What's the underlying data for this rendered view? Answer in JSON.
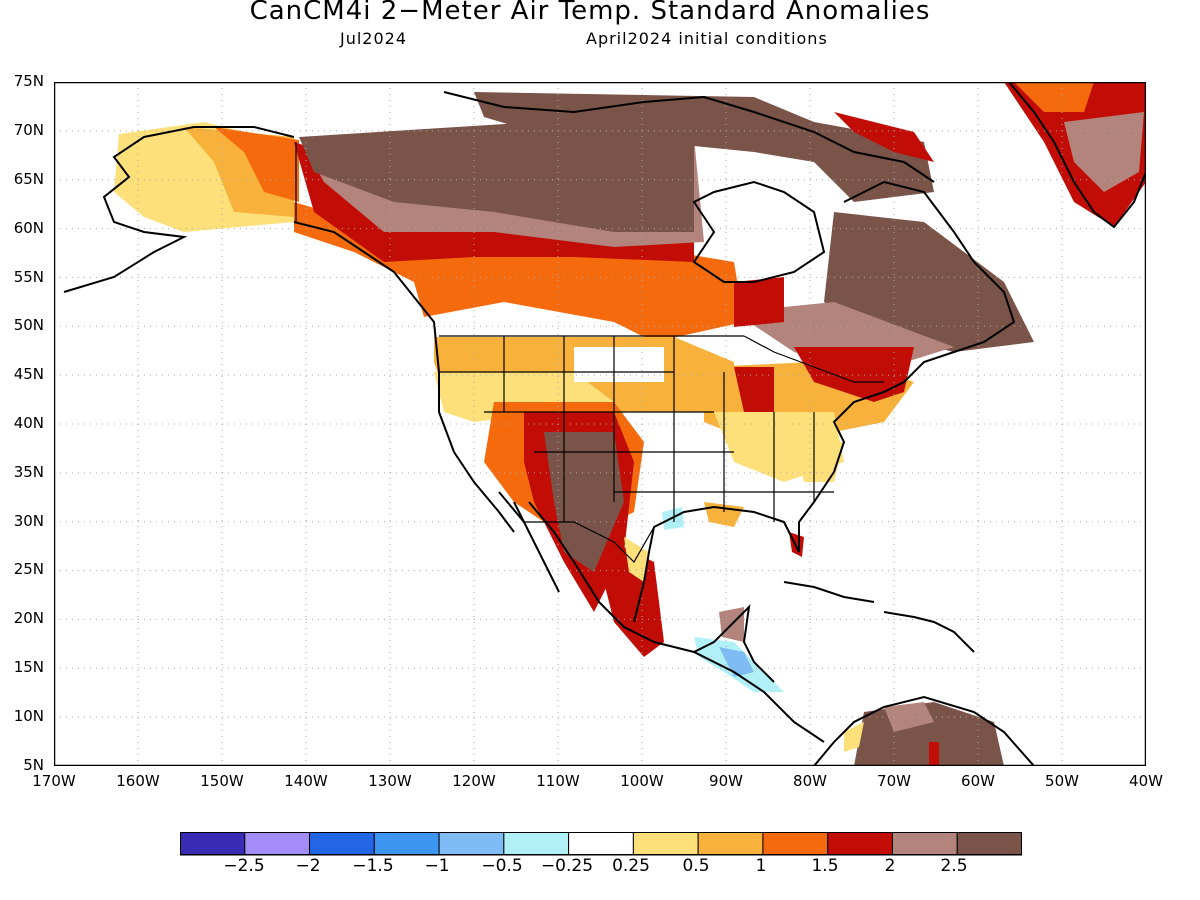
{
  "title": "CanCM4i 2−Meter Air Temp. Standard Anomalies",
  "target_month": "Jul2024",
  "initial_conditions": "April2024 initial conditions",
  "map": {
    "projection": "lat-lon",
    "lon_range": [
      -170,
      -40
    ],
    "lat_range": [
      5,
      75
    ],
    "grid": true,
    "y_labels": [
      "75N",
      "70N",
      "65N",
      "60N",
      "55N",
      "50N",
      "45N",
      "40N",
      "35N",
      "30N",
      "25N",
      "20N",
      "15N",
      "10N",
      "5N"
    ],
    "x_labels": [
      "170W",
      "160W",
      "150W",
      "140W",
      "130W",
      "120W",
      "110W",
      "100W",
      "90W",
      "80W",
      "70W",
      "60W",
      "50W",
      "40W"
    ]
  },
  "legend": {
    "colors": [
      "#3a2bb4",
      "#a38cf7",
      "#2266e6",
      "#3d96f0",
      "#7fbcf5",
      "#b2f0f7",
      "#ffffff",
      "#fde07a",
      "#f8b13a",
      "#f66a0e",
      "#c20c06",
      "#b3847c",
      "#7a5448"
    ],
    "labels": [
      "−2.5",
      "−2",
      "−1.5",
      "−1",
      "−0.5",
      "−0.25",
      "0.25",
      "0.5",
      "1",
      "1.5",
      "2",
      "2.5"
    ]
  },
  "shading_colors": {
    "tan": "#fde07a",
    "light_orange": "#f8b13a",
    "orange": "#f66a0e",
    "red": "#c20c06",
    "pink_brown": "#b3847c",
    "dark_brown": "#7a5448",
    "light_blue": "#b2f0f7",
    "blue": "#7fbcf5"
  }
}
